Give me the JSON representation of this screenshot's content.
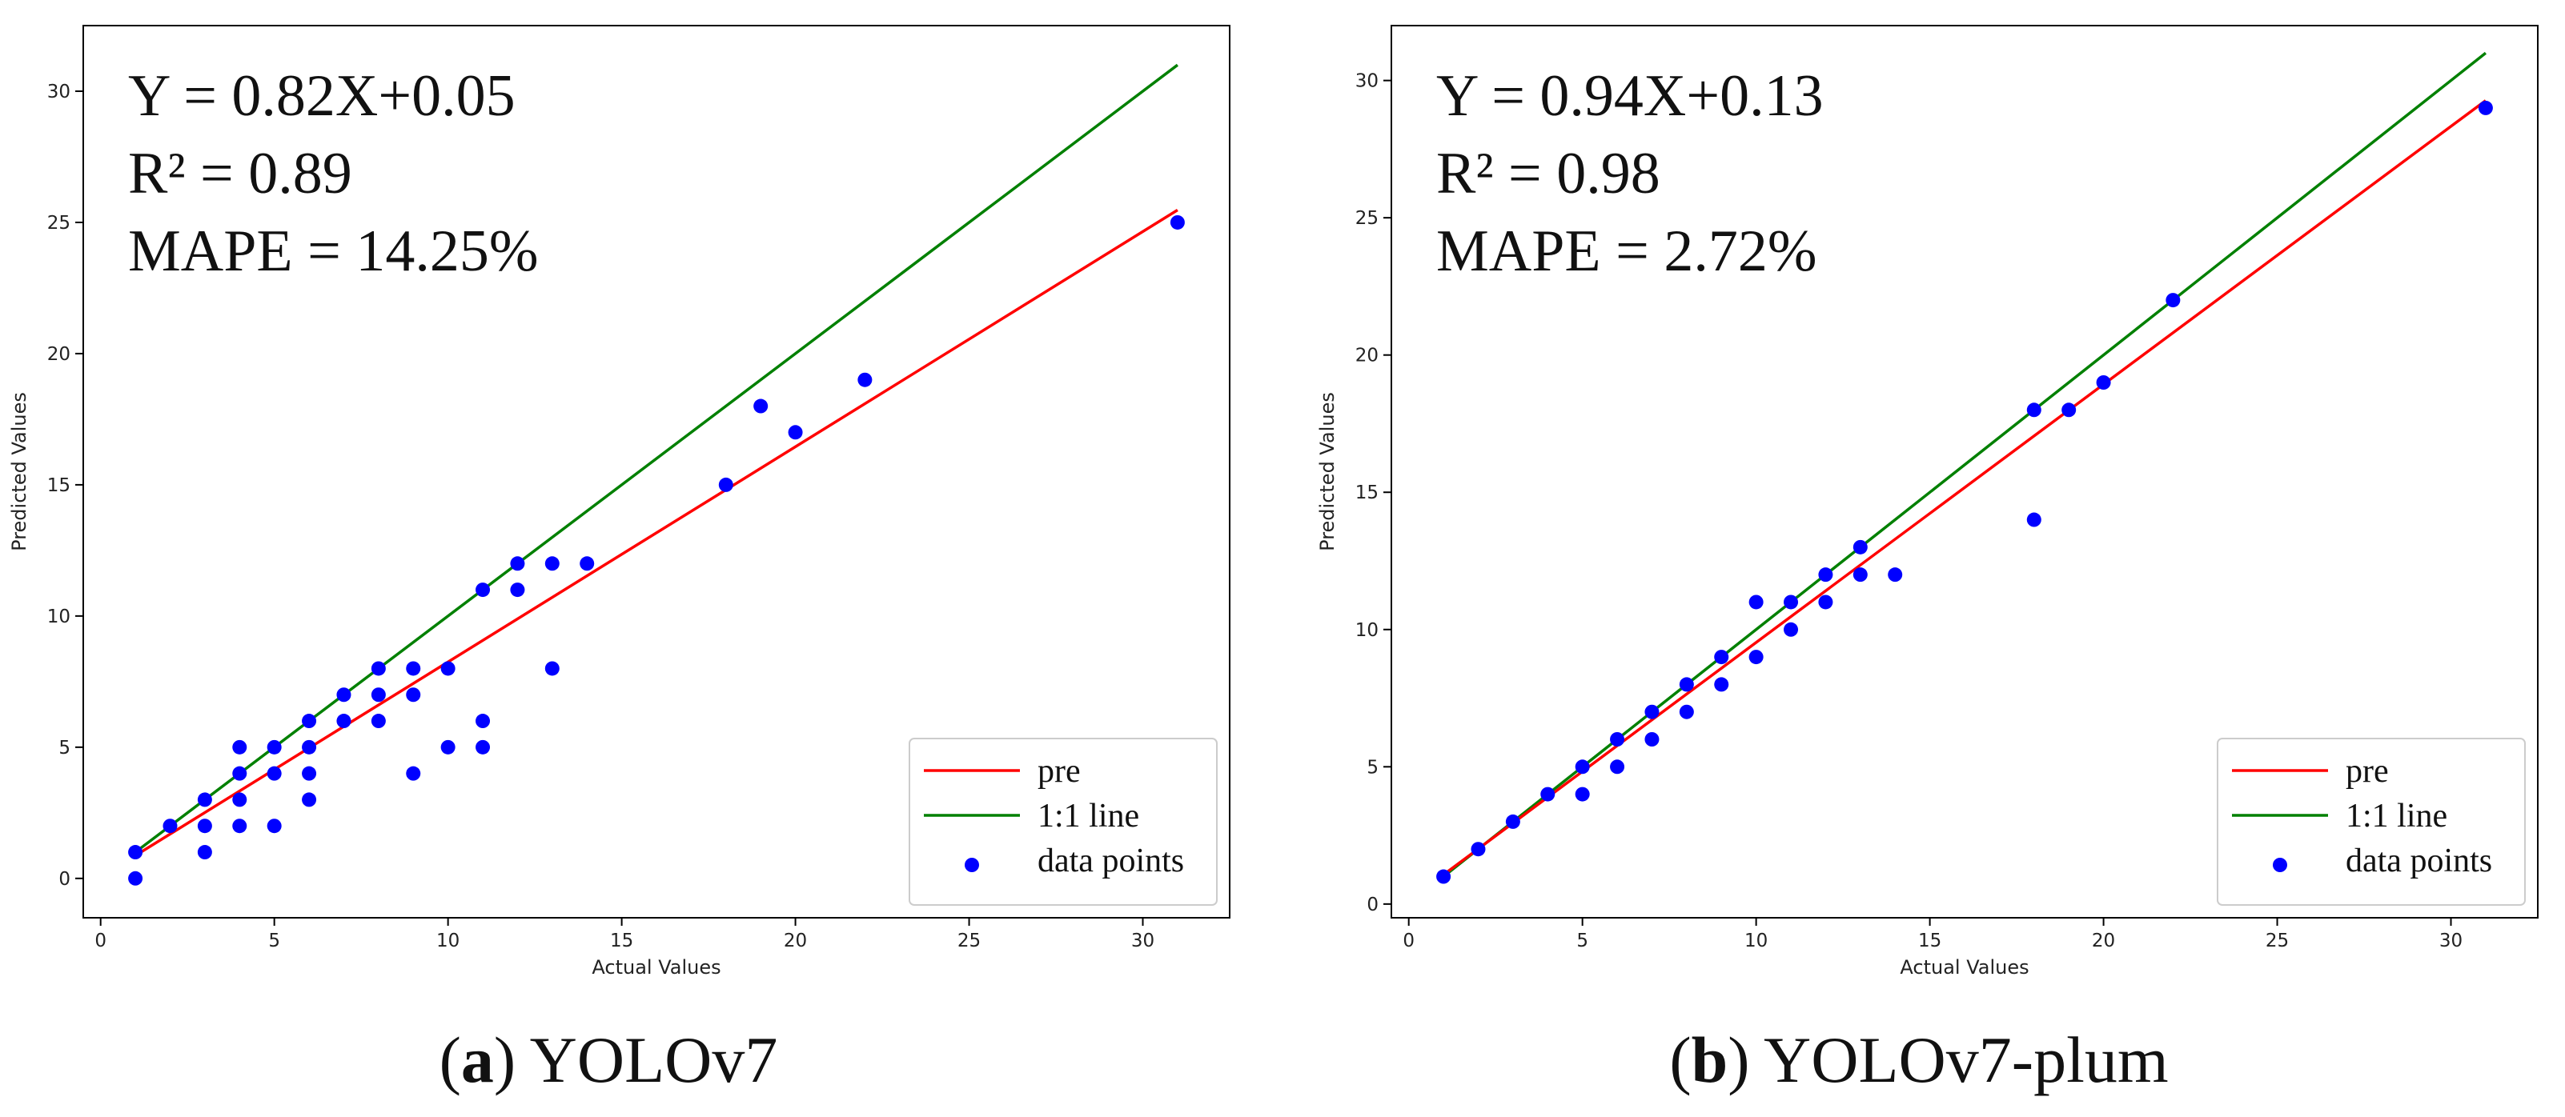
{
  "chart_data": [
    {
      "type": "scatter",
      "caption_letter": "a",
      "caption_text": "YOLOv7",
      "xlabel": "Actual Values",
      "ylabel": "Predicted Values",
      "xlim": [
        -0.5,
        32.5
      ],
      "ylim": [
        -1.5,
        32.5
      ],
      "xticks": [
        0,
        5,
        10,
        15,
        20,
        25,
        30
      ],
      "yticks": [
        0,
        5,
        10,
        15,
        20,
        25,
        30
      ],
      "annotations": [
        "Y = 0.82X+0.05",
        "R² = 0.89",
        "MAPE = 14.25%"
      ],
      "fit": {
        "slope": 0.82,
        "intercept": 0.05,
        "x_range": [
          1,
          31
        ],
        "color": "#ff0000"
      },
      "identity": {
        "x_range": [
          1,
          31
        ],
        "color": "#008000"
      },
      "point_color": "#0000ff",
      "legend": [
        "pre",
        "1:1 line",
        "data points"
      ],
      "points": [
        [
          1,
          1
        ],
        [
          1,
          0
        ],
        [
          2,
          2
        ],
        [
          3,
          3
        ],
        [
          3,
          2
        ],
        [
          3,
          1
        ],
        [
          4,
          5
        ],
        [
          4,
          4
        ],
        [
          4,
          3
        ],
        [
          4,
          2
        ],
        [
          5,
          5
        ],
        [
          5,
          4
        ],
        [
          5,
          2
        ],
        [
          6,
          6
        ],
        [
          6,
          5
        ],
        [
          6,
          4
        ],
        [
          6,
          3
        ],
        [
          7,
          7
        ],
        [
          7,
          6
        ],
        [
          8,
          8
        ],
        [
          8,
          7
        ],
        [
          8,
          6
        ],
        [
          9,
          8
        ],
        [
          9,
          7
        ],
        [
          9,
          4
        ],
        [
          10,
          8
        ],
        [
          10,
          5
        ],
        [
          11,
          11
        ],
        [
          11,
          6
        ],
        [
          11,
          5
        ],
        [
          12,
          12
        ],
        [
          12,
          11
        ],
        [
          13,
          12
        ],
        [
          13,
          8
        ],
        [
          14,
          12
        ],
        [
          18,
          15
        ],
        [
          19,
          18
        ],
        [
          20,
          17
        ],
        [
          22,
          19
        ],
        [
          31,
          25
        ]
      ]
    },
    {
      "type": "scatter",
      "caption_letter": "b",
      "caption_text": "YOLOv7-plum",
      "xlabel": "Actual Values",
      "ylabel": "Predicted Values",
      "xlim": [
        -0.5,
        32.5
      ],
      "ylim": [
        -0.5,
        32.0
      ],
      "xticks": [
        0,
        5,
        10,
        15,
        20,
        25,
        30
      ],
      "yticks": [
        0,
        5,
        10,
        15,
        20,
        25,
        30
      ],
      "annotations": [
        "Y = 0.94X+0.13",
        "R² = 0.98",
        "MAPE = 2.72%"
      ],
      "fit": {
        "slope": 0.94,
        "intercept": 0.13,
        "x_range": [
          1,
          31
        ],
        "color": "#ff0000"
      },
      "identity": {
        "x_range": [
          1,
          31
        ],
        "color": "#008000"
      },
      "point_color": "#0000ff",
      "legend": [
        "pre",
        "1:1 line",
        "data points"
      ],
      "points": [
        [
          1,
          1
        ],
        [
          2,
          2
        ],
        [
          3,
          3
        ],
        [
          4,
          4
        ],
        [
          5,
          5
        ],
        [
          5,
          4
        ],
        [
          6,
          6
        ],
        [
          6,
          5
        ],
        [
          7,
          7
        ],
        [
          7,
          6
        ],
        [
          8,
          8
        ],
        [
          8,
          7
        ],
        [
          9,
          9
        ],
        [
          9,
          8
        ],
        [
          10,
          11
        ],
        [
          10,
          9
        ],
        [
          11,
          11
        ],
        [
          11,
          10
        ],
        [
          12,
          12
        ],
        [
          12,
          11
        ],
        [
          13,
          13
        ],
        [
          13,
          12
        ],
        [
          14,
          12
        ],
        [
          18,
          18
        ],
        [
          18,
          14
        ],
        [
          19,
          18
        ],
        [
          20,
          19
        ],
        [
          22,
          22
        ],
        [
          31,
          29
        ]
      ]
    }
  ]
}
